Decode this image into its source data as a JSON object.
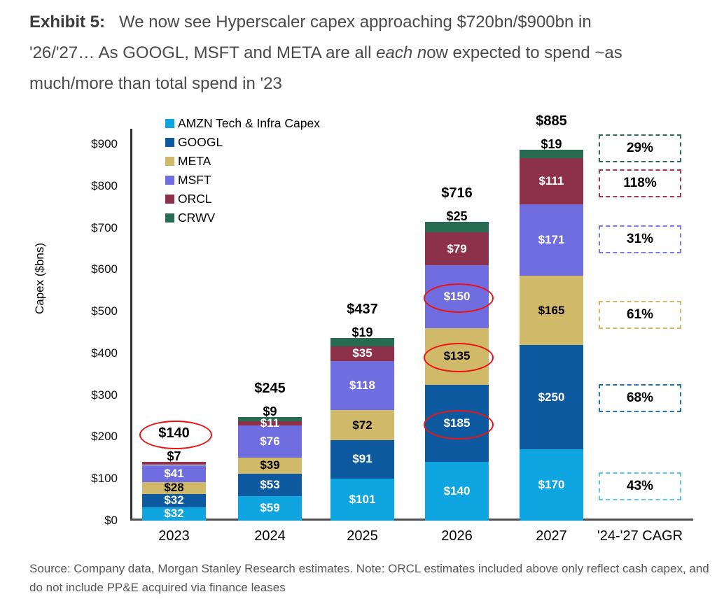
{
  "title": {
    "prefix": "Exhibit 5:",
    "l1": "We now see Hyperscaler capex approaching $720bn/$900bn in",
    "l2a": "'26/'27… As GOOGL, MSFT and META are all ",
    "l2i": "each n",
    "l2b": "ow expected to spend ~as",
    "l3": "much/more than total spend in '23"
  },
  "source": "Source: Company data, Morgan Stanley Research estimates. Note: ORCL estimates included above only reflect cash capex, and do not include PP&E acquired via finance leases",
  "colors": {
    "axis": "#2f2f2f",
    "red_circle": "#EE1111"
  },
  "chart_data": {
    "type": "bar",
    "stacked": true,
    "ylabel": "Capex ($bns)",
    "ylim": [
      0,
      950
    ],
    "y_ticks": [
      "$0",
      "$100",
      "$200",
      "$300",
      "$400",
      "$500",
      "$600",
      "$700",
      "$800",
      "$900"
    ],
    "categories": [
      "2023",
      "2024",
      "2025",
      "2026",
      "2027"
    ],
    "cagr_column_label": "'24-'27 CAGR",
    "legend_position": "top-left-inside",
    "grid": false,
    "series": [
      {
        "key": "amzn",
        "name": "AMZN Tech & Infra Capex",
        "color": "#0FA5E0",
        "label_color": "#ffffff",
        "values": [
          32,
          59,
          101,
          140,
          170
        ],
        "cagr": "43%",
        "cagr_border": "#5BC6F2"
      },
      {
        "key": "googl",
        "name": "GOOGL",
        "color": "#0E5AA0",
        "label_color": "#ffffff",
        "values": [
          32,
          53,
          91,
          185,
          250
        ],
        "cagr": "68%",
        "cagr_border": "#1D74BE"
      },
      {
        "key": "meta",
        "name": "META",
        "color": "#D0BA6A",
        "label_color": "#000000",
        "values": [
          28,
          39,
          72,
          135,
          165
        ],
        "cagr": "61%",
        "cagr_border": "#D0BA6A"
      },
      {
        "key": "msft",
        "name": "MSFT",
        "color": "#6F6DDF",
        "label_color": "#ffffff",
        "values": [
          41,
          76,
          118,
          150,
          171
        ],
        "cagr": "31%",
        "cagr_border": "#7B7BE8"
      },
      {
        "key": "orcl",
        "name": "ORCL",
        "color": "#8C3149",
        "label_color": "#ffffff",
        "values": [
          7,
          11,
          35,
          79,
          111
        ],
        "cagr": "118%",
        "cagr_border": "#9E3A4F"
      },
      {
        "key": "crwv",
        "name": "CRWV",
        "color": "#266B52",
        "label_color": "#000000",
        "values": [
          0,
          9,
          19,
          25,
          19
        ],
        "cagr": "29%",
        "cagr_border": "#2E6B52"
      }
    ],
    "totals": [
      "$140",
      "$245",
      "$437",
      "$716",
      "$885"
    ],
    "above_bar_labels": [
      "$7",
      "$9",
      "$19",
      "$25",
      "$19"
    ],
    "above_bar_series": [
      "ORCL",
      "CRWV",
      "CRWV",
      "CRWV",
      "CRWV"
    ],
    "annotations": {
      "circled_total": {
        "year": "2023",
        "label": "$140"
      },
      "circled_segments": [
        {
          "year": "2026",
          "series": "GOOGL",
          "label": "$185"
        },
        {
          "year": "2026",
          "series": "META",
          "label": "$135"
        },
        {
          "year": "2026",
          "series": "MSFT",
          "label": "$150"
        }
      ]
    }
  }
}
